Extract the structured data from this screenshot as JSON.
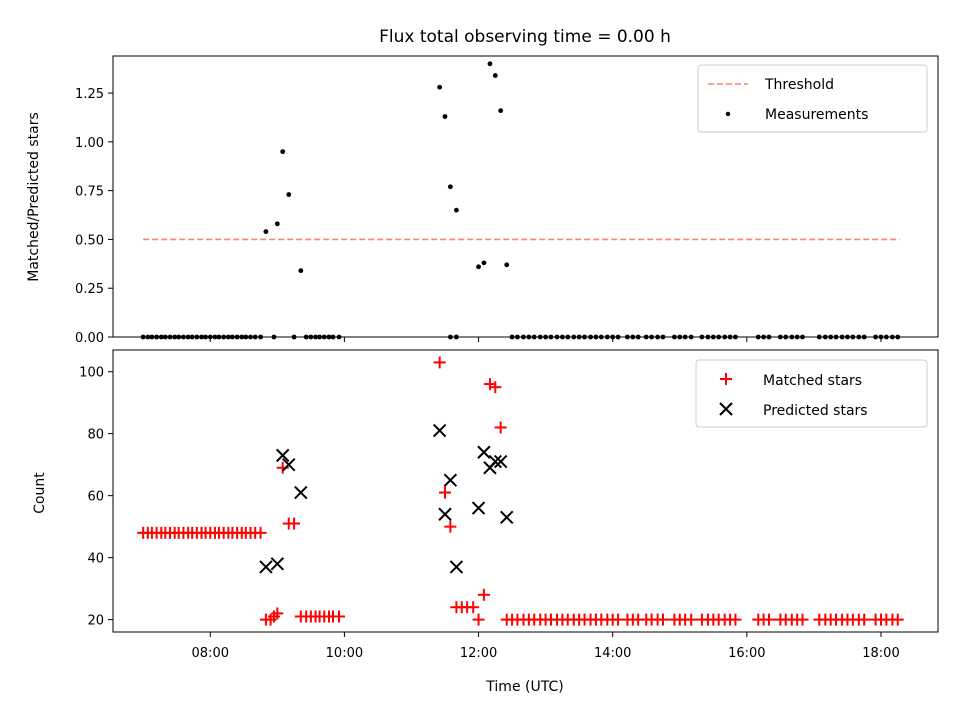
{
  "colors": {
    "threshold": "#ff7f7f",
    "measurement": "#000000",
    "matched": "#ff0000",
    "predicted": "#000000",
    "axes": "#000000",
    "background": "#ffffff"
  },
  "chart_data": [
    {
      "type": "scatter",
      "title": "Flux total observing time = 0.00 h",
      "xlabel": "",
      "ylabel": "Matched/Predicted stars",
      "xlim": [
        6.55,
        18.85
      ],
      "ylim": [
        0.0,
        1.44
      ],
      "yticks": [
        0.0,
        0.25,
        0.5,
        0.75,
        1.0,
        1.25
      ],
      "ytick_labels": [
        "0.00",
        "0.25",
        "0.50",
        "0.75",
        "1.00",
        "1.25"
      ],
      "legend_position": "top-right",
      "legend": [
        "Threshold",
        "Measurements"
      ],
      "threshold": {
        "name": "Threshold",
        "value": 0.5,
        "x_range": [
          7.0,
          18.28
        ],
        "style": "dashed"
      },
      "series": [
        {
          "name": "Measurements",
          "points": [
            [
              7.0,
              0
            ],
            [
              7.07,
              0
            ],
            [
              7.13,
              0
            ],
            [
              7.2,
              0
            ],
            [
              7.27,
              0
            ],
            [
              7.33,
              0
            ],
            [
              7.4,
              0
            ],
            [
              7.47,
              0
            ],
            [
              7.53,
              0
            ],
            [
              7.6,
              0
            ],
            [
              7.67,
              0
            ],
            [
              7.73,
              0
            ],
            [
              7.8,
              0
            ],
            [
              7.87,
              0
            ],
            [
              7.93,
              0
            ],
            [
              8.0,
              0
            ],
            [
              8.07,
              0
            ],
            [
              8.13,
              0
            ],
            [
              8.2,
              0
            ],
            [
              8.27,
              0
            ],
            [
              8.33,
              0
            ],
            [
              8.4,
              0
            ],
            [
              8.47,
              0
            ],
            [
              8.53,
              0
            ],
            [
              8.6,
              0
            ],
            [
              8.67,
              0
            ],
            [
              8.75,
              0
            ],
            [
              8.83,
              0.54
            ],
            [
              8.95,
              0
            ],
            [
              9.0,
              0.58
            ],
            [
              9.08,
              0.95
            ],
            [
              9.17,
              0.73
            ],
            [
              9.35,
              0.34
            ],
            [
              9.25,
              0
            ],
            [
              9.43,
              0
            ],
            [
              9.5,
              0
            ],
            [
              9.57,
              0
            ],
            [
              9.63,
              0
            ],
            [
              9.7,
              0
            ],
            [
              9.77,
              0
            ],
            [
              9.83,
              0
            ],
            [
              9.92,
              0
            ],
            [
              11.42,
              1.28
            ],
            [
              11.5,
              1.13
            ],
            [
              11.58,
              0.77
            ],
            [
              11.67,
              0.65
            ],
            [
              11.58,
              0
            ],
            [
              11.67,
              0
            ],
            [
              12.0,
              0.36
            ],
            [
              12.08,
              0.38
            ],
            [
              12.17,
              1.4
            ],
            [
              12.25,
              1.34
            ],
            [
              12.33,
              1.16
            ],
            [
              12.42,
              0.37
            ],
            [
              12.5,
              0
            ],
            [
              12.58,
              0
            ],
            [
              12.67,
              0
            ],
            [
              12.75,
              0
            ],
            [
              12.83,
              0
            ],
            [
              12.92,
              0
            ],
            [
              13.0,
              0
            ],
            [
              13.08,
              0
            ],
            [
              13.17,
              0
            ],
            [
              13.25,
              0
            ],
            [
              13.33,
              0
            ],
            [
              13.42,
              0
            ],
            [
              13.5,
              0
            ],
            [
              13.58,
              0
            ],
            [
              13.67,
              0
            ],
            [
              13.75,
              0
            ],
            [
              13.83,
              0
            ],
            [
              13.92,
              0
            ],
            [
              14.0,
              0
            ],
            [
              14.08,
              0
            ],
            [
              14.22,
              0
            ],
            [
              14.3,
              0
            ],
            [
              14.38,
              0
            ],
            [
              14.5,
              0
            ],
            [
              14.58,
              0
            ],
            [
              14.67,
              0
            ],
            [
              14.75,
              0
            ],
            [
              14.92,
              0
            ],
            [
              15.0,
              0
            ],
            [
              15.08,
              0
            ],
            [
              15.17,
              0
            ],
            [
              15.33,
              0
            ],
            [
              15.42,
              0
            ],
            [
              15.5,
              0
            ],
            [
              15.58,
              0
            ],
            [
              15.67,
              0
            ],
            [
              15.75,
              0
            ],
            [
              15.83,
              0
            ],
            [
              16.17,
              0
            ],
            [
              16.25,
              0
            ],
            [
              16.33,
              0
            ],
            [
              16.5,
              0
            ],
            [
              16.58,
              0
            ],
            [
              16.67,
              0
            ],
            [
              16.75,
              0
            ],
            [
              16.83,
              0
            ],
            [
              17.08,
              0
            ],
            [
              17.17,
              0
            ],
            [
              17.25,
              0
            ],
            [
              17.33,
              0
            ],
            [
              17.42,
              0
            ],
            [
              17.5,
              0
            ],
            [
              17.58,
              0
            ],
            [
              17.67,
              0
            ],
            [
              17.75,
              0
            ],
            [
              17.92,
              0
            ],
            [
              18.0,
              0
            ],
            [
              18.08,
              0
            ],
            [
              18.17,
              0
            ],
            [
              18.25,
              0
            ]
          ]
        }
      ]
    },
    {
      "type": "scatter",
      "title": "",
      "xlabel": "Time (UTC)",
      "ylabel": "Count",
      "xlim": [
        6.55,
        18.85
      ],
      "ylim": [
        16.0,
        107.0
      ],
      "xticks": [
        8,
        10,
        12,
        14,
        16,
        18
      ],
      "xtick_labels": [
        "08:00",
        "10:00",
        "12:00",
        "14:00",
        "16:00",
        "18:00"
      ],
      "yticks": [
        20,
        40,
        60,
        80,
        100
      ],
      "ytick_labels": [
        "20",
        "40",
        "60",
        "80",
        "100"
      ],
      "legend_position": "top-right",
      "legend": [
        "Matched stars",
        "Predicted stars"
      ],
      "series": [
        {
          "name": "Matched stars",
          "marker": "plus",
          "points": [
            [
              7.0,
              48
            ],
            [
              7.07,
              48
            ],
            [
              7.13,
              48
            ],
            [
              7.2,
              48
            ],
            [
              7.27,
              48
            ],
            [
              7.33,
              48
            ],
            [
              7.4,
              48
            ],
            [
              7.47,
              48
            ],
            [
              7.53,
              48
            ],
            [
              7.6,
              48
            ],
            [
              7.67,
              48
            ],
            [
              7.73,
              48
            ],
            [
              7.8,
              48
            ],
            [
              7.87,
              48
            ],
            [
              7.93,
              48
            ],
            [
              8.0,
              48
            ],
            [
              8.07,
              48
            ],
            [
              8.13,
              48
            ],
            [
              8.2,
              48
            ],
            [
              8.27,
              48
            ],
            [
              8.33,
              48
            ],
            [
              8.4,
              48
            ],
            [
              8.47,
              48
            ],
            [
              8.53,
              48
            ],
            [
              8.6,
              48
            ],
            [
              8.67,
              48
            ],
            [
              8.75,
              48
            ],
            [
              8.83,
              20
            ],
            [
              8.9,
              20
            ],
            [
              8.95,
              21
            ],
            [
              9.0,
              22
            ],
            [
              9.08,
              69
            ],
            [
              9.17,
              51
            ],
            [
              9.25,
              51
            ],
            [
              9.35,
              21
            ],
            [
              9.43,
              21
            ],
            [
              9.5,
              21
            ],
            [
              9.57,
              21
            ],
            [
              9.63,
              21
            ],
            [
              9.7,
              21
            ],
            [
              9.77,
              21
            ],
            [
              9.83,
              21
            ],
            [
              9.92,
              21
            ],
            [
              11.42,
              103
            ],
            [
              11.5,
              61
            ],
            [
              11.58,
              50
            ],
            [
              11.67,
              24
            ],
            [
              11.75,
              24
            ],
            [
              11.83,
              24
            ],
            [
              11.92,
              24
            ],
            [
              12.0,
              20
            ],
            [
              12.08,
              28
            ],
            [
              12.17,
              96
            ],
            [
              12.25,
              95
            ],
            [
              12.33,
              82
            ],
            [
              12.42,
              20
            ],
            [
              12.5,
              20
            ],
            [
              12.58,
              20
            ],
            [
              12.67,
              20
            ],
            [
              12.75,
              20
            ],
            [
              12.83,
              20
            ],
            [
              12.92,
              20
            ],
            [
              13.0,
              20
            ],
            [
              13.08,
              20
            ],
            [
              13.17,
              20
            ],
            [
              13.25,
              20
            ],
            [
              13.33,
              20
            ],
            [
              13.42,
              20
            ],
            [
              13.5,
              20
            ],
            [
              13.58,
              20
            ],
            [
              13.67,
              20
            ],
            [
              13.75,
              20
            ],
            [
              13.83,
              20
            ],
            [
              13.92,
              20
            ],
            [
              14.0,
              20
            ],
            [
              14.08,
              20
            ],
            [
              14.22,
              20
            ],
            [
              14.3,
              20
            ],
            [
              14.38,
              20
            ],
            [
              14.5,
              20
            ],
            [
              14.58,
              20
            ],
            [
              14.67,
              20
            ],
            [
              14.75,
              20
            ],
            [
              14.92,
              20
            ],
            [
              15.0,
              20
            ],
            [
              15.08,
              20
            ],
            [
              15.17,
              20
            ],
            [
              15.33,
              20
            ],
            [
              15.42,
              20
            ],
            [
              15.5,
              20
            ],
            [
              15.58,
              20
            ],
            [
              15.67,
              20
            ],
            [
              15.75,
              20
            ],
            [
              15.83,
              20
            ],
            [
              16.17,
              20
            ],
            [
              16.25,
              20
            ],
            [
              16.33,
              20
            ],
            [
              16.5,
              20
            ],
            [
              16.58,
              20
            ],
            [
              16.67,
              20
            ],
            [
              16.75,
              20
            ],
            [
              16.83,
              20
            ],
            [
              17.08,
              20
            ],
            [
              17.17,
              20
            ],
            [
              17.25,
              20
            ],
            [
              17.33,
              20
            ],
            [
              17.42,
              20
            ],
            [
              17.5,
              20
            ],
            [
              17.58,
              20
            ],
            [
              17.67,
              20
            ],
            [
              17.75,
              20
            ],
            [
              17.92,
              20
            ],
            [
              18.0,
              20
            ],
            [
              18.08,
              20
            ],
            [
              18.17,
              20
            ],
            [
              18.25,
              20
            ]
          ]
        },
        {
          "name": "Predicted stars",
          "marker": "x",
          "points": [
            [
              8.83,
              37
            ],
            [
              9.0,
              38
            ],
            [
              9.08,
              73
            ],
            [
              9.17,
              70
            ],
            [
              9.35,
              61
            ],
            [
              11.42,
              81
            ],
            [
              11.5,
              54
            ],
            [
              11.58,
              65
            ],
            [
              11.67,
              37
            ],
            [
              12.0,
              56
            ],
            [
              12.08,
              74
            ],
            [
              12.17,
              69
            ],
            [
              12.25,
              71
            ],
            [
              12.33,
              71
            ],
            [
              12.42,
              53
            ]
          ]
        }
      ]
    }
  ]
}
